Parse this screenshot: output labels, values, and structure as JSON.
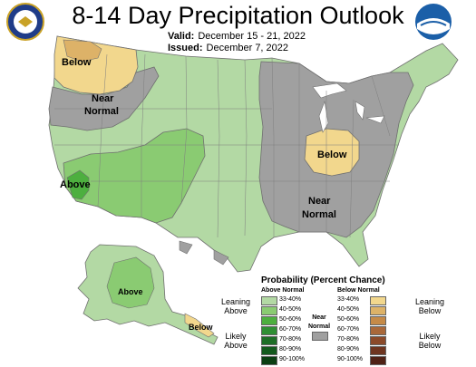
{
  "header": {
    "title": "8-14 Day Precipitation Outlook",
    "valid_label": "Valid:",
    "valid_value": "December 15 - 21, 2022",
    "issued_label": "Issued:",
    "issued_value": "December 7, 2022"
  },
  "map_labels": {
    "nw_below": "Below",
    "nw_near": "Near",
    "nw_normal": "Normal",
    "sw_above": "Above",
    "mw_below": "Below",
    "se_near": "Near",
    "se_normal": "Normal",
    "ak_above": "Above",
    "ak_below": "Below"
  },
  "legend": {
    "title": "Probability (Percent Chance)",
    "above_header": "Above Normal",
    "below_header": "Below Normal",
    "near_label_1": "Near",
    "near_label_2": "Normal",
    "leaning_above_1": "Leaning",
    "leaning_above_2": "Above",
    "likely_above_1": "Likely",
    "likely_above_2": "Above",
    "leaning_below_1": "Leaning",
    "leaning_below_2": "Below",
    "likely_below_1": "Likely",
    "likely_below_2": "Below",
    "above_ranges": [
      "33-40%",
      "40-50%",
      "50-60%",
      "60-70%",
      "70-80%",
      "80-90%",
      "90-100%"
    ],
    "below_ranges": [
      "33-40%",
      "40-50%",
      "50-60%",
      "60-70%",
      "70-80%",
      "80-90%",
      "90-100%"
    ],
    "above_colors": [
      "#b3d9a4",
      "#8acb72",
      "#4daf3f",
      "#2f8f34",
      "#1e6e27",
      "#145a1e",
      "#0b3f13"
    ],
    "below_colors": [
      "#f2d78d",
      "#ddb268",
      "#c58a48",
      "#a9683a",
      "#8b4a2a",
      "#6e3520",
      "#4f2216"
    ],
    "near_color": "#a0a0a0"
  },
  "colors": {
    "above_light": "#b3d9a4",
    "above_mid": "#8acb72",
    "above_dark": "#4daf3f",
    "below_light": "#f2d78d",
    "below_mid": "#ddb268",
    "near": "#a0a0a0",
    "border": "#7f7f7f"
  }
}
